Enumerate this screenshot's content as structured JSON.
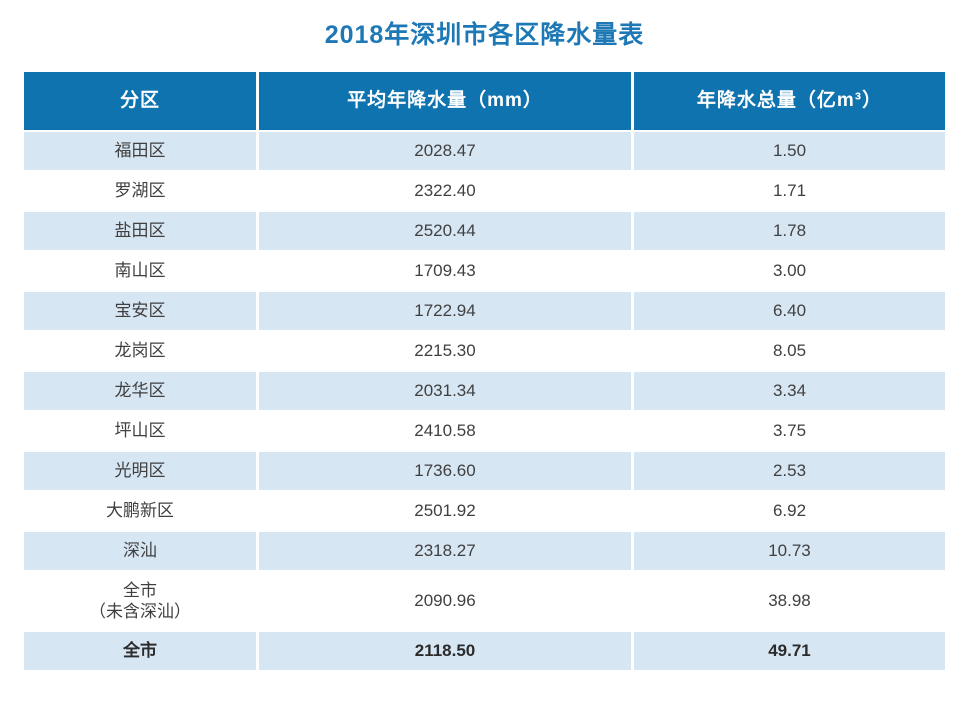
{
  "title": "2018年深圳市各区降水量表",
  "colors": {
    "header_bg": "#0e73ae",
    "alt_row_bg": "#d7e6f3",
    "title_text": "#1e78b6",
    "header_text": "#ffffff",
    "body_text": "#404040"
  },
  "table": {
    "headers": {
      "district": "分区",
      "avg": "平均年降水量（mm）",
      "total": "年降水总量（亿m³）"
    },
    "rows": [
      {
        "district": "福田区",
        "avg": "2028.47",
        "total": "1.50"
      },
      {
        "district": "罗湖区",
        "avg": "2322.40",
        "total": "1.71"
      },
      {
        "district": "盐田区",
        "avg": "2520.44",
        "total": "1.78"
      },
      {
        "district": "南山区",
        "avg": "1709.43",
        "total": "3.00"
      },
      {
        "district": "宝安区",
        "avg": "1722.94",
        "total": "6.40"
      },
      {
        "district": "龙岗区",
        "avg": "2215.30",
        "total": "8.05"
      },
      {
        "district": "龙华区",
        "avg": "2031.34",
        "total": "3.34"
      },
      {
        "district": "坪山区",
        "avg": "2410.58",
        "total": "3.75"
      },
      {
        "district": "光明区",
        "avg": "1736.60",
        "total": "2.53"
      },
      {
        "district": "大鹏新区",
        "avg": "2501.92",
        "total": "6.92"
      },
      {
        "district": "深汕",
        "avg": "2318.27",
        "total": "10.73"
      },
      {
        "district": "全市\n（未含深汕）",
        "avg": "2090.96",
        "total": "38.98"
      },
      {
        "district": "全市",
        "avg": "2118.50",
        "total": "49.71"
      }
    ]
  },
  "chart_data": {
    "type": "table",
    "title": "2018年深圳市各区降水量表",
    "columns": [
      "分区",
      "平均年降水量（mm）",
      "年降水总量（亿m³）"
    ],
    "rows": [
      [
        "福田区",
        2028.47,
        1.5
      ],
      [
        "罗湖区",
        2322.4,
        1.71
      ],
      [
        "盐田区",
        2520.44,
        1.78
      ],
      [
        "南山区",
        1709.43,
        3.0
      ],
      [
        "宝安区",
        1722.94,
        6.4
      ],
      [
        "龙岗区",
        2215.3,
        8.05
      ],
      [
        "龙华区",
        2031.34,
        3.34
      ],
      [
        "坪山区",
        2410.58,
        3.75
      ],
      [
        "光明区",
        1736.6,
        2.53
      ],
      [
        "大鹏新区",
        2501.92,
        6.92
      ],
      [
        "深汕",
        2318.27,
        10.73
      ],
      [
        "全市（未含深汕）",
        2090.96,
        38.98
      ],
      [
        "全市",
        2118.5,
        49.71
      ]
    ]
  }
}
